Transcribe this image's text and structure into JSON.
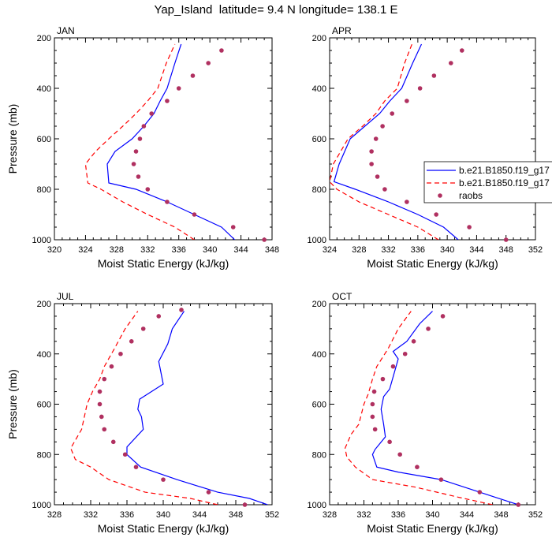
{
  "figure": {
    "title": "Yap_Island  latitude= 9.4 N longitude= 138.1 E"
  },
  "colors": {
    "model_a": "#0000ff",
    "model_b": "#ff0000",
    "raobs": "#b03060",
    "axis": "#000000"
  },
  "legend": {
    "placement": "right of APR panel",
    "entries": [
      {
        "label": "b.e21.B1850.f19_g17",
        "style": "solid",
        "color": "#0000ff"
      },
      {
        "label": "b.e21.B1850.f19_g17",
        "style": "dashed",
        "color": "#ff0000"
      },
      {
        "label": "raobs",
        "style": "marker",
        "color": "#b03060"
      }
    ]
  },
  "chart_data": [
    {
      "type": "line",
      "panel_label": "JAN",
      "xlabel": "Moist Static Energy (kJ/kg)",
      "ylabel": "Pressure (mb)",
      "xlim": [
        320,
        348
      ],
      "ylim": [
        200,
        1000
      ],
      "y_reversed": true,
      "xticks": [
        320,
        324,
        328,
        332,
        336,
        340,
        344,
        348
      ],
      "yticks": [
        200,
        400,
        600,
        800,
        1000
      ],
      "grid": false,
      "series": [
        {
          "style": "solid",
          "color": "#0000ff",
          "x": [
            343.2,
            341.5,
            338.0,
            334.5,
            330.5,
            327.0,
            326.8,
            327.8,
            330.0,
            331.5,
            332.8,
            333.6,
            334.5,
            335.5,
            336.3
          ],
          "y": [
            1000,
            950,
            900,
            850,
            800,
            775,
            700,
            650,
            600,
            550,
            500,
            450,
            400,
            300,
            225
          ]
        },
        {
          "style": "dashed",
          "color": "#ff0000",
          "x": [
            338.0,
            335.5,
            332.0,
            328.8,
            326.0,
            324.3,
            324.0,
            325.3,
            327.0,
            328.8,
            330.5,
            332.0,
            333.3,
            334.4,
            335.5
          ],
          "y": [
            1000,
            950,
            900,
            850,
            800,
            775,
            700,
            650,
            600,
            550,
            500,
            450,
            400,
            300,
            225
          ]
        },
        {
          "style": "marker",
          "color": "#b03060",
          "x": [
            347.0,
            343.0,
            338.0,
            334.5,
            332.0,
            330.8,
            330.2,
            330.5,
            331.0,
            331.5,
            332.5,
            334.5,
            336.0,
            337.8,
            339.8,
            341.5
          ],
          "y": [
            1000,
            950,
            900,
            850,
            800,
            750,
            700,
            650,
            600,
            550,
            500,
            450,
            400,
            350,
            300,
            250
          ]
        }
      ]
    },
    {
      "type": "line",
      "panel_label": "APR",
      "xlabel": "Moist Static Energy (kJ/kg)",
      "ylabel": "",
      "xlim": [
        324,
        352
      ],
      "ylim": [
        200,
        1000
      ],
      "y_reversed": true,
      "xticks": [
        324,
        328,
        332,
        336,
        340,
        344,
        348,
        352
      ],
      "yticks": [
        200,
        400,
        600,
        800,
        1000
      ],
      "grid": false,
      "series": [
        {
          "style": "solid",
          "color": "#0000ff",
          "x": [
            341.5,
            339.5,
            336.0,
            332.0,
            327.5,
            324.6,
            325.3,
            326.8,
            328.8,
            330.8,
            332.2,
            333.8,
            335.3,
            336.5
          ],
          "y": [
            1000,
            950,
            900,
            850,
            800,
            770,
            700,
            600,
            550,
            500,
            450,
            400,
            300,
            225
          ]
        },
        {
          "style": "dashed",
          "color": "#ff0000",
          "x": [
            338.8,
            336.0,
            332.0,
            328.0,
            325.0,
            324.0,
            324.5,
            326.5,
            328.5,
            330.3,
            331.5,
            333.2,
            334.2,
            335.2
          ],
          "y": [
            1000,
            950,
            900,
            850,
            800,
            770,
            700,
            600,
            550,
            500,
            450,
            400,
            300,
            225
          ]
        },
        {
          "style": "marker",
          "color": "#b03060",
          "x": [
            348.0,
            343.0,
            338.5,
            334.5,
            331.5,
            330.5,
            329.7,
            329.7,
            330.3,
            331.2,
            332.5,
            334.5,
            336.3,
            338.2,
            340.5,
            342.0
          ],
          "y": [
            1000,
            950,
            900,
            850,
            800,
            750,
            700,
            650,
            600,
            550,
            500,
            450,
            400,
            350,
            300,
            250
          ]
        }
      ]
    },
    {
      "type": "line",
      "panel_label": "JUL",
      "xlabel": "Moist Static Energy (kJ/kg)",
      "ylabel": "Pressure (mb)",
      "xlim": [
        328,
        352
      ],
      "ylim": [
        200,
        1000
      ],
      "y_reversed": true,
      "xticks": [
        328,
        332,
        336,
        340,
        344,
        348,
        352
      ],
      "yticks": [
        200,
        400,
        600,
        800,
        1000
      ],
      "grid": false,
      "series": [
        {
          "style": "solid",
          "color": "#0000ff",
          "x": [
            351.5,
            349.5,
            346.0,
            341.5,
            337.5,
            336.0,
            336.0,
            337.8,
            337.6,
            337.2,
            337.4,
            340.0,
            339.5,
            340.5,
            341.0,
            342.3
          ],
          "y": [
            1000,
            975,
            950,
            900,
            850,
            800,
            770,
            700,
            650,
            620,
            580,
            520,
            430,
            360,
            300,
            230
          ]
        },
        {
          "style": "dashed",
          "color": "#ff0000",
          "x": [
            346.0,
            343.0,
            338.0,
            334.0,
            332.0,
            330.3,
            329.8,
            331.0,
            331.3,
            331.6,
            332.2,
            333.0,
            333.5,
            334.6,
            335.8,
            337.2
          ],
          "y": [
            1000,
            975,
            950,
            900,
            850,
            820,
            775,
            700,
            650,
            600,
            550,
            500,
            450,
            380,
            300,
            230
          ]
        },
        {
          "style": "marker",
          "color": "#b03060",
          "x": [
            349.0,
            345.0,
            340.0,
            337.0,
            335.8,
            334.5,
            333.5,
            333.2,
            333.0,
            333.0,
            333.5,
            334.3,
            335.3,
            336.5,
            337.8,
            339.5,
            342.0
          ],
          "y": [
            1000,
            950,
            900,
            850,
            800,
            750,
            700,
            650,
            600,
            550,
            500,
            450,
            400,
            350,
            300,
            250,
            225
          ]
        }
      ]
    },
    {
      "type": "line",
      "panel_label": "OCT",
      "xlabel": "Moist Static Energy (kJ/kg)",
      "ylabel": "",
      "xlim": [
        328,
        352
      ],
      "ylim": [
        200,
        1000
      ],
      "y_reversed": true,
      "xticks": [
        328,
        332,
        336,
        340,
        344,
        348,
        352
      ],
      "yticks": [
        200,
        400,
        600,
        800,
        1000
      ],
      "grid": false,
      "series": [
        {
          "style": "solid",
          "color": "#0000ff",
          "x": [
            350.0,
            345.5,
            341.0,
            336.0,
            333.5,
            333.0,
            333.3,
            334.5,
            334.3,
            334.0,
            334.3,
            335.0,
            336.0,
            335.4,
            337.0,
            338.5,
            340.0
          ],
          "y": [
            1000,
            950,
            900,
            870,
            850,
            800,
            780,
            730,
            680,
            620,
            570,
            540,
            420,
            390,
            350,
            280,
            230
          ]
        },
        {
          "style": "dashed",
          "color": "#ff0000",
          "x": [
            347.0,
            343.0,
            338.0,
            333.0,
            331.0,
            330.0,
            329.8,
            330.5,
            331.4,
            331.7,
            332.0,
            332.5,
            333.0,
            333.5,
            334.8,
            336.0,
            337.5
          ],
          "y": [
            1000,
            970,
            930,
            900,
            850,
            810,
            775,
            720,
            680,
            640,
            600,
            560,
            500,
            450,
            380,
            300,
            230
          ]
        },
        {
          "style": "marker",
          "color": "#b03060",
          "x": [
            350.0,
            345.5,
            341.0,
            338.2,
            336.2,
            335.0,
            333.3,
            333.0,
            333.0,
            333.2,
            334.2,
            335.4,
            336.8,
            337.8,
            339.5,
            341.2
          ],
          "y": [
            1000,
            950,
            900,
            850,
            800,
            750,
            700,
            650,
            600,
            550,
            500,
            450,
            400,
            350,
            300,
            250
          ]
        }
      ]
    }
  ]
}
